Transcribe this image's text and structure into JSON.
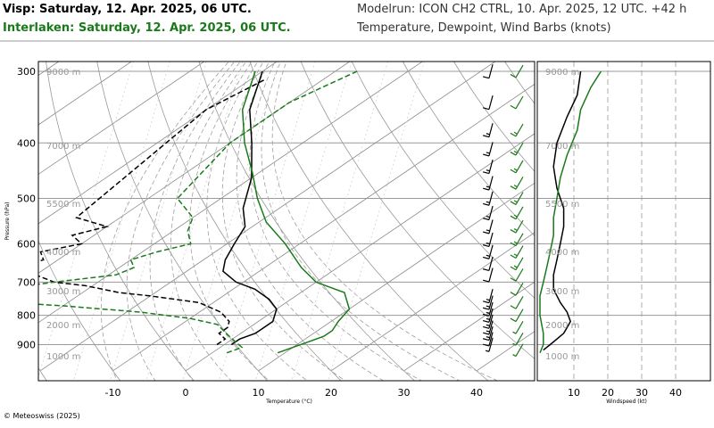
{
  "header": {
    "visp_title": "Visp: Saturday, 12. Apr. 2025, 06 UTC.",
    "interlaken_title": "Interlaken: Saturday, 12. Apr. 2025, 06 UTC.",
    "model_run": "Modelrun: ICON CH2 CTRL, 10. Apr. 2025, 12 UTC. +42 h",
    "variables": "Temperature, Dewpoint, Wind Barbs (knots)"
  },
  "footer": {
    "copyright": "© Meteoswiss (2025)"
  },
  "colors": {
    "visp": "#000000",
    "interlaken": "#1a7a1a"
  },
  "chart_data": [
    {
      "type": "line",
      "chart_kind": "skew-T log-p",
      "xlabel": "Temperature (°C)",
      "ylabel": "Pressure (hPa)",
      "x_ticks": [
        "-10",
        "0",
        "10",
        "20",
        "30",
        "40"
      ],
      "y_ticks": [
        "300",
        "400",
        "500",
        "600",
        "700",
        "800",
        "900"
      ],
      "altitude_labels": [
        "9000 m",
        "7000 m",
        "5500 m",
        "4000 m",
        "3000 m",
        "2000 m",
        "1000 m"
      ],
      "xlim": [
        -25,
        47
      ],
      "ylim": [
        950,
        290
      ],
      "series": [
        {
          "name": "Visp",
          "kind": "temperature",
          "color": "#000000",
          "points": [
            [
              900,
              1
            ],
            [
              880,
              1
            ],
            [
              860,
              2
            ],
            [
              850,
              2
            ],
            [
              820,
              2
            ],
            [
              780,
              0
            ],
            [
              750,
              -3
            ],
            [
              720,
              -7
            ],
            [
              700,
              -11
            ],
            [
              670,
              -15
            ],
            [
              640,
              -17
            ],
            [
              600,
              -19
            ],
            [
              560,
              -21
            ],
            [
              520,
              -25
            ],
            [
              460,
              -30
            ],
            [
              400,
              -37
            ],
            [
              350,
              -44
            ],
            [
              300,
              -50
            ]
          ]
        },
        {
          "name": "Visp",
          "kind": "dewpoint",
          "color": "#000000",
          "points": [
            [
              900,
              -1
            ],
            [
              880,
              -1
            ],
            [
              860,
              -3
            ],
            [
              840,
              -3
            ],
            [
              820,
              -4
            ],
            [
              790,
              -7
            ],
            [
              760,
              -12
            ],
            [
              740,
              -20
            ],
            [
              730,
              -25
            ],
            [
              710,
              -31
            ],
            [
              700,
              -36
            ],
            [
              680,
              -40
            ],
            [
              660,
              -44
            ],
            [
              640,
              -42
            ],
            [
              620,
              -44
            ],
            [
              600,
              -40
            ],
            [
              580,
              -43
            ],
            [
              560,
              -40
            ],
            [
              540,
              -46
            ],
            [
              350,
              -50
            ],
            [
              310,
              -48
            ]
          ]
        },
        {
          "name": "Interlaken",
          "kind": "temperature",
          "color": "#1a7a1a",
          "points": [
            [
              930,
              9
            ],
            [
              910,
              10
            ],
            [
              890,
              11
            ],
            [
              870,
              12
            ],
            [
              850,
              12
            ],
            [
              820,
              11
            ],
            [
              780,
              10
            ],
            [
              730,
              6
            ],
            [
              700,
              0
            ],
            [
              660,
              -5
            ],
            [
              600,
              -12
            ],
            [
              550,
              -19
            ],
            [
              500,
              -25
            ],
            [
              450,
              -31
            ],
            [
              400,
              -38
            ],
            [
              350,
              -45
            ],
            [
              300,
              -51
            ]
          ]
        },
        {
          "name": "Interlaken",
          "kind": "dewpoint",
          "color": "#1a7a1a",
          "points": [
            [
              930,
              2
            ],
            [
              910,
              3
            ],
            [
              890,
              1
            ],
            [
              870,
              -1
            ],
            [
              850,
              -3
            ],
            [
              830,
              -5
            ],
            [
              810,
              -10
            ],
            [
              790,
              -18
            ],
            [
              770,
              -30
            ],
            [
              760,
              -38
            ],
            [
              740,
              -44
            ],
            [
              720,
              -42
            ],
            [
              700,
              -36
            ],
            [
              680,
              -29
            ],
            [
              660,
              -28
            ],
            [
              640,
              -30
            ],
            [
              620,
              -28
            ],
            [
              600,
              -25
            ],
            [
              570,
              -28
            ],
            [
              540,
              -30
            ],
            [
              500,
              -36
            ],
            [
              400,
              -40
            ],
            [
              340,
              -40
            ],
            [
              300,
              -37
            ]
          ]
        }
      ],
      "wind_barbs": {
        "unit": "knots",
        "visp": {
          "color": "#000000",
          "barbs": [
            [
              300,
              10
            ],
            [
              340,
              12
            ],
            [
              380,
              15
            ],
            [
              410,
              15
            ],
            [
              440,
              15
            ],
            [
              470,
              15
            ],
            [
              500,
              15
            ],
            [
              530,
              15
            ],
            [
              560,
              15
            ],
            [
              590,
              15
            ],
            [
              620,
              15
            ],
            [
              650,
              10
            ],
            [
              680,
              10
            ],
            [
              740,
              15
            ],
            [
              760,
              15
            ],
            [
              780,
              15
            ],
            [
              800,
              15
            ],
            [
              820,
              15
            ],
            [
              840,
              15
            ],
            [
              860,
              15
            ],
            [
              880,
              10
            ],
            [
              900,
              5
            ]
          ]
        },
        "interlaken": {
          "color": "#1a7a1a",
          "barbs": [
            [
              300,
              10
            ],
            [
              340,
              12
            ],
            [
              380,
              15
            ],
            [
              410,
              15
            ],
            [
              440,
              15
            ],
            [
              470,
              15
            ],
            [
              500,
              15
            ],
            [
              530,
              15
            ],
            [
              560,
              15
            ],
            [
              590,
              15
            ],
            [
              620,
              15
            ],
            [
              650,
              15
            ],
            [
              680,
              10
            ],
            [
              720,
              10
            ],
            [
              760,
              10
            ],
            [
              800,
              10
            ],
            [
              840,
              5
            ],
            [
              880,
              5
            ],
            [
              920,
              5
            ]
          ]
        }
      }
    },
    {
      "type": "line",
      "chart_kind": "wind speed profile",
      "xlabel": "Windspeed (kt)",
      "x_ticks": [
        "10",
        "20",
        "30",
        "40"
      ],
      "xlim": [
        0,
        50
      ],
      "altitude_labels": [
        "9000 m",
        "7000 m",
        "5500 m",
        "4000 m",
        "3000 m",
        "2000 m",
        "1000 m"
      ],
      "series": [
        {
          "name": "Visp",
          "color": "#000000",
          "points": [
            [
              300,
              12
            ],
            [
              330,
              11
            ],
            [
              360,
              8
            ],
            [
              400,
              5
            ],
            [
              440,
              4
            ],
            [
              480,
              5
            ],
            [
              520,
              7
            ],
            [
              560,
              7
            ],
            [
              600,
              6
            ],
            [
              640,
              5
            ],
            [
              680,
              4
            ],
            [
              720,
              4
            ],
            [
              760,
              6
            ],
            [
              790,
              8
            ],
            [
              820,
              9
            ],
            [
              840,
              8
            ],
            [
              860,
              7
            ],
            [
              880,
              5
            ],
            [
              900,
              3
            ],
            [
              920,
              1
            ]
          ]
        },
        {
          "name": "Interlaken",
          "color": "#1a7a1a",
          "points": [
            [
              300,
              18
            ],
            [
              320,
              15
            ],
            [
              350,
              12
            ],
            [
              380,
              11
            ],
            [
              420,
              8
            ],
            [
              460,
              6
            ],
            [
              500,
              5
            ],
            [
              540,
              4
            ],
            [
              580,
              4
            ],
            [
              620,
              3
            ],
            [
              660,
              2
            ],
            [
              700,
              1
            ],
            [
              740,
              0
            ],
            [
              800,
              0
            ],
            [
              860,
              1
            ],
            [
              900,
              1
            ],
            [
              930,
              0
            ]
          ]
        }
      ]
    }
  ]
}
